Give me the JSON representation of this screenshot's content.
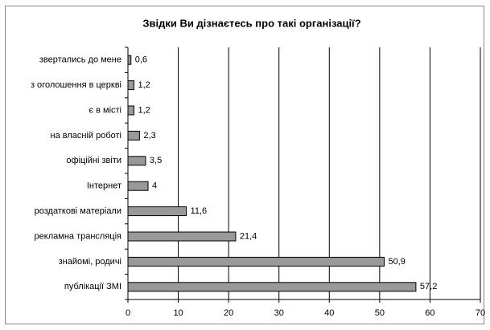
{
  "chart_data": {
    "type": "barh",
    "title": "Звідки Ви дізнаєтесь про такі організації?",
    "categories": [
      "звертались до мене",
      "з оголошення в церкві",
      "є в місті",
      "на власній роботі",
      "офіційні звіти",
      "Інтернет",
      "роздаткові матеріали",
      "рекламна трансляція",
      "знайомі, родичі",
      "публікації ЗМІ"
    ],
    "values": [
      0.6,
      1.2,
      1.2,
      2.3,
      3.5,
      4,
      11.6,
      21.4,
      50.9,
      57.2
    ],
    "value_labels": [
      "0,6",
      "1,2",
      "1,2",
      "2,3",
      "3,5",
      "4",
      "11,6",
      "21,4",
      "50,9",
      "57,2"
    ],
    "color": "#999999",
    "xlim": [
      0,
      70
    ],
    "xticks": [
      0,
      10,
      20,
      30,
      40,
      50,
      60,
      70
    ],
    "grid": true
  }
}
